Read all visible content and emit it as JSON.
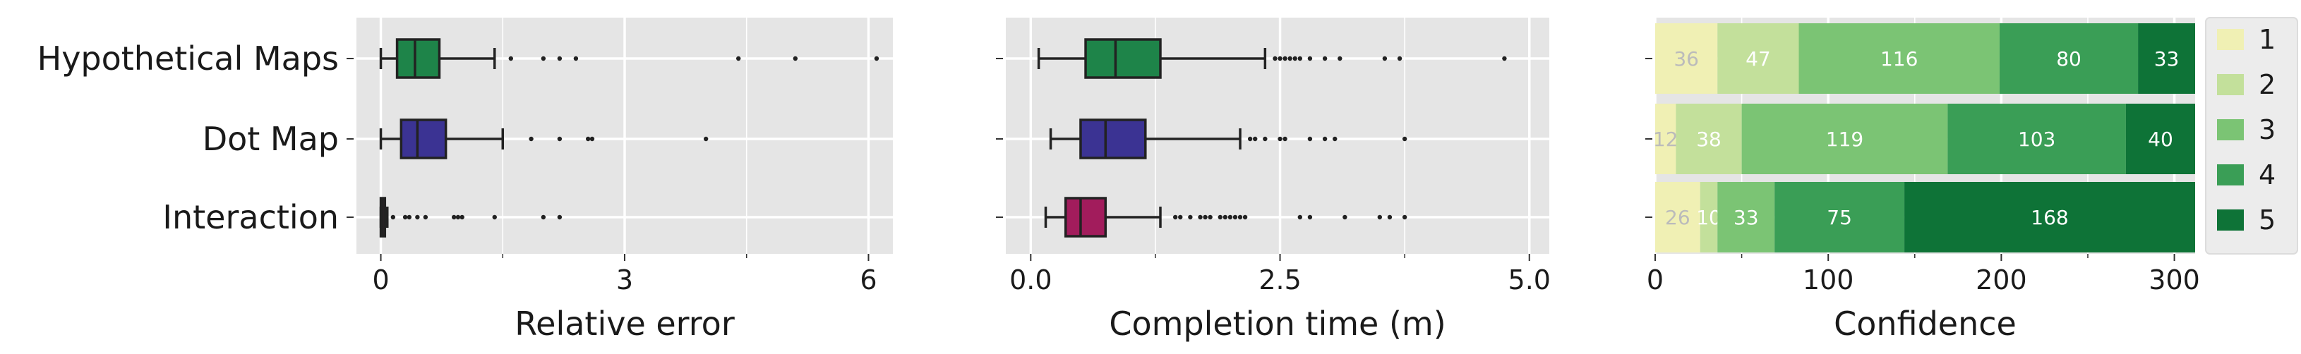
{
  "chart_data": [
    {
      "type": "boxplot",
      "xlabel": "Relative error",
      "xlim": [
        -0.3,
        6.3
      ],
      "xticks": [
        0,
        3,
        6
      ],
      "grid": true,
      "categories": [
        "Hypothetical Maps",
        "Dot Map",
        "Interaction"
      ],
      "boxes": [
        {
          "category": "Hypothetical Maps",
          "color": "#1e8449",
          "whisker_low": 0.0,
          "q1": 0.2,
          "median": 0.42,
          "q3": 0.72,
          "whisker_high": 1.4,
          "outliers": [
            1.6,
            2.0,
            2.2,
            2.4,
            4.4,
            5.1,
            6.1
          ]
        },
        {
          "category": "Dot Map",
          "color": "#3b3393",
          "whisker_low": 0.0,
          "q1": 0.25,
          "median": 0.45,
          "q3": 0.8,
          "whisker_high": 1.5,
          "outliers": [
            1.85,
            2.2,
            2.55,
            2.6,
            4.0
          ]
        },
        {
          "category": "Interaction",
          "color": "#a21c5c",
          "whisker_low": 0.0,
          "q1": 0.0,
          "median": 0.02,
          "q3": 0.05,
          "whisker_high": 0.08,
          "outliers": [
            0.15,
            0.3,
            0.35,
            0.45,
            0.55,
            0.9,
            0.95,
            1.0,
            1.4,
            2.0,
            2.2
          ]
        }
      ]
    },
    {
      "type": "boxplot",
      "xlabel": "Completion time (m)",
      "xlim": [
        -0.25,
        5.2
      ],
      "xticks": [
        0.0,
        2.5,
        5.0
      ],
      "grid": true,
      "categories": [
        "Hypothetical Maps",
        "Dot Map",
        "Interaction"
      ],
      "boxes": [
        {
          "category": "Hypothetical Maps",
          "color": "#1e8449",
          "whisker_low": 0.08,
          "q1": 0.55,
          "median": 0.85,
          "q3": 1.3,
          "whisker_high": 2.35,
          "outliers": [
            2.45,
            2.5,
            2.55,
            2.6,
            2.65,
            2.7,
            2.8,
            2.95,
            3.1,
            3.55,
            3.7,
            4.75
          ]
        },
        {
          "category": "Dot Map",
          "color": "#3b3393",
          "whisker_low": 0.2,
          "q1": 0.5,
          "median": 0.75,
          "q3": 1.15,
          "whisker_high": 2.1,
          "outliers": [
            2.2,
            2.25,
            2.35,
            2.5,
            2.55,
            2.8,
            2.95,
            3.05,
            3.75
          ]
        },
        {
          "category": "Interaction",
          "color": "#a21c5c",
          "whisker_low": 0.15,
          "q1": 0.35,
          "median": 0.5,
          "q3": 0.75,
          "whisker_high": 1.3,
          "outliers": [
            1.45,
            1.5,
            1.6,
            1.7,
            1.75,
            1.8,
            1.9,
            1.95,
            2.0,
            2.05,
            2.1,
            2.15,
            2.7,
            2.8,
            3.15,
            3.5,
            3.6,
            3.75
          ]
        }
      ]
    },
    {
      "type": "bar",
      "stacked": true,
      "orientation": "horizontal",
      "xlabel": "Confidence",
      "xlim": [
        0,
        312
      ],
      "xticks": [
        0,
        100,
        200,
        300
      ],
      "grid": true,
      "legend_position": "right",
      "categories": [
        "Hypothetical Maps",
        "Dot Map",
        "Interaction"
      ],
      "series": [
        {
          "name": "1",
          "color": "#f0f0b4",
          "label_color": "#bbbbbb",
          "values": [
            36,
            12,
            26
          ]
        },
        {
          "name": "2",
          "color": "#c3e09b",
          "label_color": "#ffffff",
          "values": [
            47,
            38,
            10
          ]
        },
        {
          "name": "3",
          "color": "#7bc474",
          "label_color": "#ffffff",
          "values": [
            116,
            119,
            33
          ]
        },
        {
          "name": "4",
          "color": "#3a9e56",
          "label_color": "#ffffff",
          "values": [
            80,
            103,
            75
          ]
        },
        {
          "name": "5",
          "color": "#0e7337",
          "label_color": "#ffffff",
          "values": [
            33,
            40,
            168
          ]
        }
      ]
    }
  ]
}
